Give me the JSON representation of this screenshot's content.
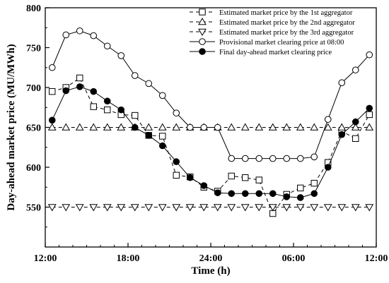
{
  "chart_data": {
    "type": "line",
    "xlabel": "Time (h)",
    "ylabel": "Day-ahead market price (MU/MWh)",
    "xlim": [
      12,
      36
    ],
    "ylim": [
      500,
      800
    ],
    "x_ticks": [
      {
        "value": 12,
        "label": "12:00"
      },
      {
        "value": 18,
        "label": "18:00"
      },
      {
        "value": 24,
        "label": "24:00"
      },
      {
        "value": 30,
        "label": "06:00"
      },
      {
        "value": 36,
        "label": "12:00"
      }
    ],
    "y_ticks": [
      550,
      600,
      650,
      700,
      750,
      800
    ],
    "legend_position": "top-right",
    "x": [
      12.5,
      13.5,
      14.5,
      15.5,
      16.5,
      17.5,
      18.5,
      19.5,
      20.5,
      21.5,
      22.5,
      23.5,
      24.5,
      25.5,
      26.5,
      27.5,
      28.5,
      29.5,
      30.5,
      31.5,
      32.5,
      33.5,
      34.5,
      35.5
    ],
    "series": [
      {
        "name": "Estimated market price by the 1st aggregator",
        "marker": "square",
        "line": "dashed",
        "values": [
          695,
          700,
          712,
          676,
          672,
          666,
          665,
          640,
          639,
          590,
          588,
          575,
          570,
          589,
          587,
          584,
          542,
          566,
          574,
          580,
          606,
          645,
          636,
          666
        ]
      },
      {
        "name": "Estimated market price by the 2nd aggregator",
        "marker": "triangle-up",
        "line": "dashed",
        "values": [
          650,
          650,
          650,
          650,
          650,
          650,
          650,
          650,
          650,
          650,
          650,
          650,
          650,
          650,
          650,
          650,
          650,
          650,
          650,
          650,
          650,
          650,
          650,
          650
        ]
      },
      {
        "name": "Estimated market price by the 3rd aggregator",
        "marker": "triangle-down",
        "line": "dashed",
        "values": [
          550,
          550,
          550,
          550,
          550,
          550,
          550,
          550,
          550,
          550,
          550,
          550,
          550,
          550,
          550,
          550,
          550,
          550,
          550,
          550,
          550,
          550,
          550,
          550
        ]
      },
      {
        "name": "Provisional market clearing price at 08:00",
        "marker": "circle-open",
        "line": "solid",
        "values": [
          725,
          766,
          771,
          765,
          752,
          740,
          715,
          705,
          690,
          668,
          650,
          650,
          650,
          611,
          611,
          611,
          611,
          611,
          611,
          613,
          660,
          706,
          722,
          741
        ]
      },
      {
        "name": "Final day-ahead market clearing price",
        "marker": "circle-filled",
        "line": "solid",
        "values": [
          659,
          696,
          701,
          695,
          683,
          672,
          650,
          640,
          627,
          607,
          587,
          577,
          568,
          567,
          567,
          567,
          567,
          563,
          562,
          567,
          600,
          641,
          657,
          674
        ]
      }
    ]
  }
}
